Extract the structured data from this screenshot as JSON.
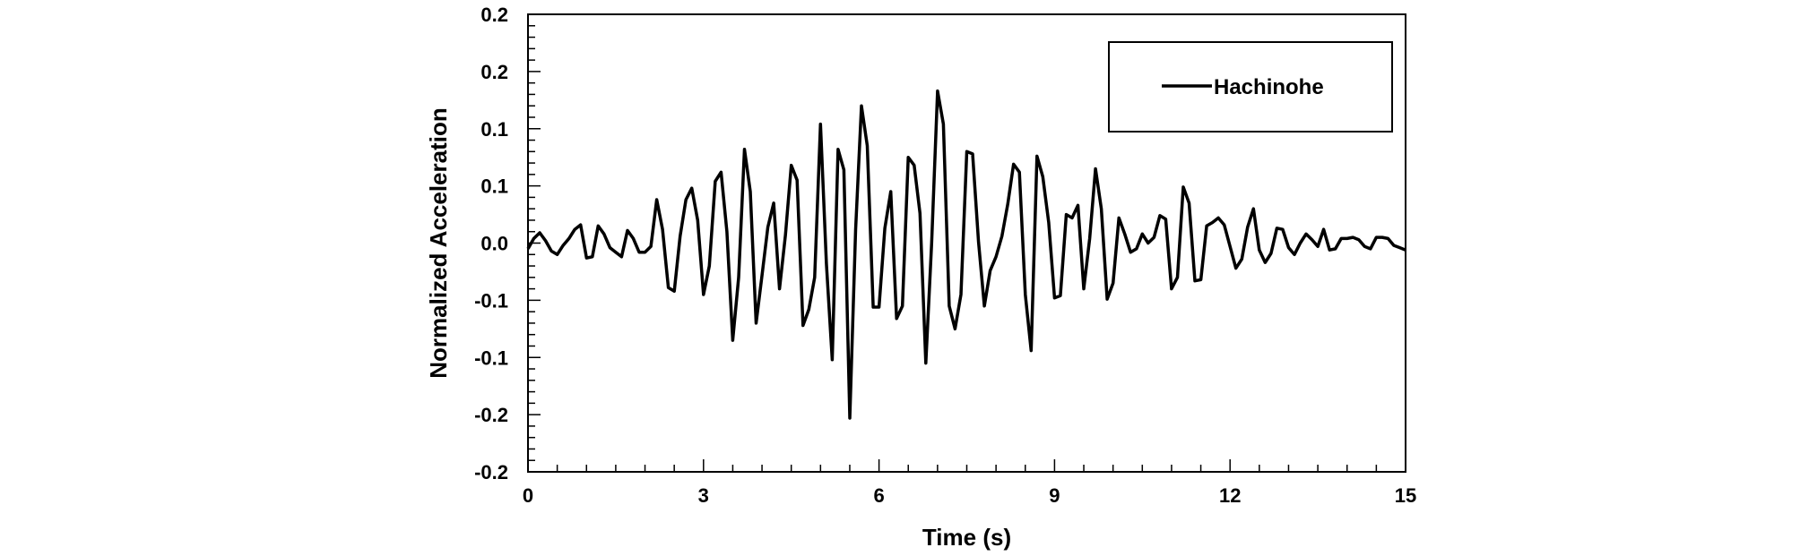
{
  "chart_data": {
    "type": "line",
    "xlabel": "Time (s)",
    "ylabel": "Normalized Acceleration",
    "xlim": [
      0,
      15
    ],
    "ylim": [
      -0.2,
      0.2
    ],
    "x_ticks": [
      0,
      3,
      6,
      9,
      12,
      15
    ],
    "x_tick_labels": [
      "0",
      "3",
      "6",
      "9",
      "12",
      "15"
    ],
    "y_ticks": [
      -0.2,
      -0.15,
      -0.1,
      -0.05,
      0,
      0.05,
      0.1,
      0.15,
      0.2
    ],
    "y_tick_labels": [
      "-0.2",
      "-0.2",
      "-0.1",
      "-0.1",
      "0.0",
      "0.1",
      "0.1",
      "0.2",
      "0.2"
    ],
    "grid": false,
    "legend_position": "top-right",
    "series": [
      {
        "name": "Hachinohe",
        "color": "#000000",
        "x": [
          0,
          0.1,
          0.2,
          0.3,
          0.4,
          0.5,
          0.6,
          0.7,
          0.8,
          0.9,
          1.0,
          1.1,
          1.2,
          1.3,
          1.4,
          1.5,
          1.6,
          1.7,
          1.8,
          1.9,
          2.0,
          2.1,
          2.2,
          2.3,
          2.4,
          2.5,
          2.6,
          2.7,
          2.8,
          2.9,
          3.0,
          3.1,
          3.2,
          3.3,
          3.4,
          3.5,
          3.6,
          3.7,
          3.8,
          3.9,
          4.0,
          4.1,
          4.2,
          4.3,
          4.4,
          4.5,
          4.6,
          4.7,
          4.8,
          4.9,
          5.0,
          5.1,
          5.2,
          5.3,
          5.4,
          5.5,
          5.6,
          5.7,
          5.8,
          5.9,
          6.0,
          6.1,
          6.2,
          6.3,
          6.4,
          6.5,
          6.6,
          6.7,
          6.8,
          6.9,
          7.0,
          7.1,
          7.2,
          7.3,
          7.4,
          7.5,
          7.6,
          7.7,
          7.8,
          7.9,
          8.0,
          8.1,
          8.2,
          8.3,
          8.4,
          8.5,
          8.6,
          8.7,
          8.8,
          8.9,
          9.0,
          9.1,
          9.2,
          9.3,
          9.4,
          9.5,
          9.6,
          9.7,
          9.8,
          9.9,
          10.0,
          10.1,
          10.2,
          10.3,
          10.4,
          10.5,
          10.6,
          10.7,
          10.8,
          10.9,
          11.0,
          11.1,
          11.2,
          11.3,
          11.4,
          11.5,
          11.6,
          11.7,
          11.8,
          11.9,
          12.0,
          12.1,
          12.2,
          12.3,
          12.4,
          12.5,
          12.6,
          12.7,
          12.8,
          12.9,
          13.0,
          13.1,
          13.2,
          13.3,
          13.4,
          13.5,
          13.6,
          13.7,
          13.8,
          13.9,
          14.0,
          14.1,
          14.2,
          14.3,
          14.4,
          14.5,
          14.6,
          14.7,
          14.8,
          14.9,
          15.0
        ],
        "y": [
          -0.005,
          0.004,
          0.009,
          0.002,
          -0.007,
          -0.01,
          -0.002,
          0.004,
          0.012,
          0.016,
          -0.013,
          -0.012,
          0.015,
          0.008,
          -0.004,
          -0.008,
          -0.012,
          0.011,
          0.004,
          -0.008,
          -0.008,
          -0.003,
          0.038,
          0.012,
          -0.039,
          -0.042,
          0.006,
          0.038,
          0.048,
          0.02,
          -0.045,
          -0.02,
          0.054,
          0.062,
          0.01,
          -0.085,
          -0.03,
          0.082,
          0.045,
          -0.07,
          -0.028,
          0.014,
          0.035,
          -0.04,
          0.007,
          0.068,
          0.055,
          -0.072,
          -0.058,
          -0.03,
          0.104,
          -0.018,
          -0.102,
          0.082,
          0.064,
          -0.153,
          0.012,
          0.12,
          0.085,
          -0.056,
          -0.056,
          0.013,
          0.045,
          -0.066,
          -0.055,
          0.075,
          0.068,
          0.026,
          -0.105,
          0.0,
          0.133,
          0.104,
          -0.055,
          -0.075,
          -0.045,
          0.08,
          0.078,
          0.001,
          -0.055,
          -0.024,
          -0.012,
          0.006,
          0.034,
          0.069,
          0.062,
          -0.045,
          -0.094,
          0.076,
          0.058,
          0.018,
          -0.048,
          -0.046,
          0.025,
          0.022,
          0.033,
          -0.04,
          0.004,
          0.065,
          0.03,
          -0.049,
          -0.035,
          0.022,
          0.008,
          -0.008,
          -0.005,
          0.008,
          0.0,
          0.005,
          0.024,
          0.021,
          -0.04,
          -0.03,
          0.049,
          0.035,
          -0.033,
          -0.032,
          0.015,
          0.018,
          0.022,
          0.016,
          -0.003,
          -0.022,
          -0.014,
          0.014,
          0.03,
          -0.006,
          -0.017,
          -0.009,
          0.013,
          0.012,
          -0.004,
          -0.01,
          0.0,
          0.008,
          0.003,
          -0.003,
          0.012,
          -0.006,
          -0.005,
          0.004,
          0.004,
          0.005,
          0.003,
          -0.003,
          -0.005,
          0.005,
          0.005,
          0.004,
          -0.002,
          -0.004,
          -0.006
        ]
      }
    ]
  }
}
